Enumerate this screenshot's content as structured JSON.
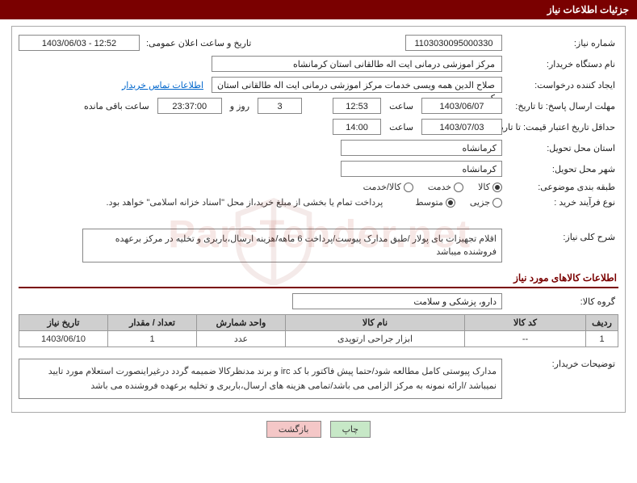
{
  "titleBar": "جزئیات اطلاعات نیاز",
  "labels": {
    "needNo": "شماره نیاز:",
    "announceDate": "تاریخ و ساعت اعلان عمومی:",
    "buyerOrg": "نام دستگاه خریدار:",
    "requester": "ایجاد کننده درخواست:",
    "contactLink": "اطلاعات تماس خریدار",
    "deadline": "مهلت ارسال پاسخ: تا تاریخ:",
    "hour": "ساعت",
    "dayAnd": "روز و",
    "remaining": "ساعت باقی مانده",
    "minValidity": "حداقل تاریخ اعتبار قیمت: تا تاریخ:",
    "provinceDeliver": "استان محل تحویل:",
    "cityDeliver": "شهر محل تحویل:",
    "subjectClass": "طبقه بندی موضوعی:",
    "buyProcess": "نوع فرآیند خرید :",
    "processNote": "پرداخت تمام یا بخشی از مبلغ خرید،از محل \"اسناد خزانه اسلامی\" خواهد بود.",
    "summary": "شرح کلی نیاز:",
    "goodsInfo": "اطلاعات کالاهای مورد نیاز",
    "goodsGroup": "گروه کالا:",
    "buyerDesc": "توضیحات خریدار:"
  },
  "values": {
    "needNo": "1103030095000330",
    "announceDate": "1403/06/03 - 12:52",
    "buyerOrg": "مرکز اموزشی درمانی ایت اله طالقانی استان کرمانشاه",
    "requester": "صلاح الدین همه ویسی خدمات مرکز اموزشی درمانی ایت اله طالقانی استان کر",
    "deadlineDate": "1403/06/07",
    "deadlineHour": "12:53",
    "daysRemain": "3",
    "timeRemain": "23:37:00",
    "validityDate": "1403/07/03",
    "validityHour": "14:00",
    "province": "کرمانشاه",
    "city": "کرمانشاه",
    "summary": "اقلام تجهیزات بای پولار /طبق مدارک پیوست/پرداخت 6 ماهه/هزینه ارسال،باربری و تخلیه در مرکز برعهده فروشنده میباشد",
    "goodsGroup": "دارو، پزشکی و سلامت",
    "buyerDesc": "مدارک پیوستی کامل مطالعه شود/حتما پیش فاکتور با کد irc و برند مدنظرکالا ضمیمه گردد درغیراینصورت استعلام مورد تایید نمیباشد /ارائه نمونه به مرکز الزامی می باشد/تمامی هزینه های ارسال،باربری و تخلیه برعهده فروشنده می باشد"
  },
  "radios": {
    "subject": [
      {
        "label": "کالا",
        "checked": true
      },
      {
        "label": "خدمت",
        "checked": false
      },
      {
        "label": "کالا/خدمت",
        "checked": false
      }
    ],
    "process": [
      {
        "label": "جزیی",
        "checked": false
      },
      {
        "label": "متوسط",
        "checked": true
      }
    ]
  },
  "table": {
    "headers": {
      "row": "ردیف",
      "code": "کد کالا",
      "name": "نام کالا",
      "unit": "واحد شمارش",
      "qty": "تعداد / مقدار",
      "date": "تاریخ نیاز"
    },
    "rows": [
      {
        "row": "1",
        "code": "--",
        "name": "ابزار جراحی ارتوپدی",
        "unit": "عدد",
        "qty": "1",
        "date": "1403/06/10"
      }
    ]
  },
  "buttons": {
    "print": "چاپ",
    "back": "بازگشت"
  },
  "watermark": "ParsTender.net",
  "colors": {
    "brand": "#7a0000",
    "border": "#999999",
    "header_bg": "#cfcfcf",
    "link": "#0066cc",
    "btn_print": "#c7e8c7",
    "btn_back": "#f4c7c7"
  }
}
